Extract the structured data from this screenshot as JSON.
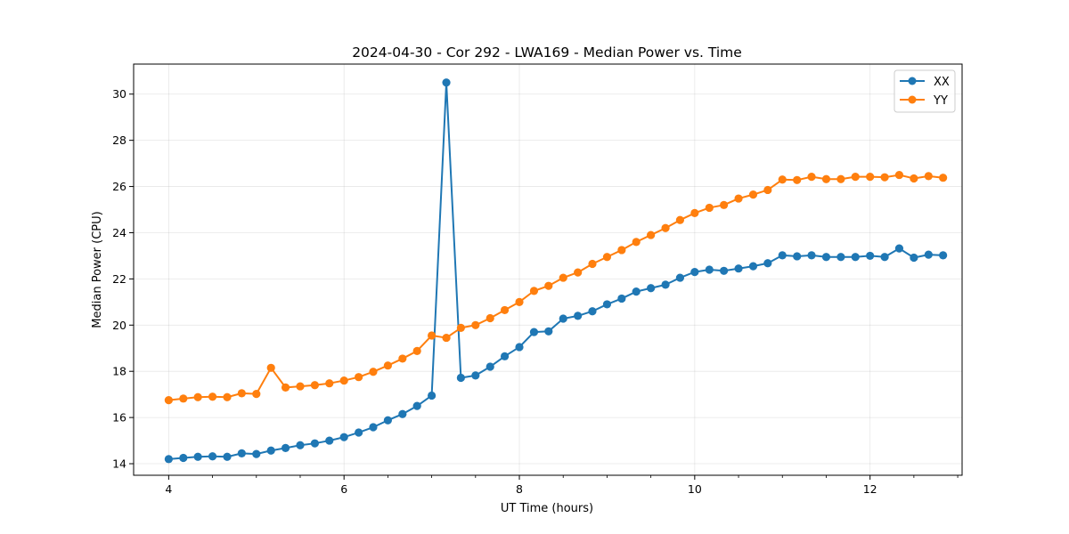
{
  "chart_data": {
    "type": "line",
    "title": "2024-04-30 - Cor 292 - LWA169 - Median Power vs. Time",
    "xlabel": "UT Time (hours)",
    "ylabel": "Median Power (CPU)",
    "xlim": [
      3.6,
      13.05
    ],
    "ylim": [
      13.5,
      31.3
    ],
    "xticks": [
      4,
      6,
      8,
      10,
      12
    ],
    "yticks": [
      14,
      16,
      18,
      20,
      22,
      24,
      26,
      28,
      30
    ],
    "x_minor_step": 0.5,
    "grid": true,
    "legend_position": "top-right",
    "x": [
      4.0,
      4.167,
      4.333,
      4.5,
      4.667,
      4.833,
      5.0,
      5.167,
      5.333,
      5.5,
      5.667,
      5.833,
      6.0,
      6.167,
      6.333,
      6.5,
      6.667,
      6.833,
      7.0,
      7.167,
      7.333,
      7.5,
      7.667,
      7.833,
      8.0,
      8.167,
      8.333,
      8.5,
      8.667,
      8.833,
      9.0,
      9.167,
      9.333,
      9.5,
      9.667,
      9.833,
      10.0,
      10.167,
      10.333,
      10.5,
      10.667,
      10.833,
      11.0,
      11.167,
      11.333,
      11.5,
      11.667,
      11.833,
      12.0,
      12.167,
      12.333,
      12.5,
      12.667,
      12.833
    ],
    "series": [
      {
        "name": "XX",
        "color": "#1f77b4",
        "values": [
          14.2,
          14.25,
          14.3,
          14.32,
          14.3,
          14.45,
          14.42,
          14.57,
          14.68,
          14.8,
          14.88,
          15.0,
          15.15,
          15.35,
          15.58,
          15.88,
          16.15,
          16.5,
          16.95,
          30.5,
          17.72,
          17.82,
          18.2,
          18.65,
          19.05,
          19.7,
          19.73,
          20.28,
          20.4,
          20.6,
          20.9,
          21.15,
          21.45,
          21.6,
          21.75,
          22.05,
          22.3,
          22.4,
          22.35,
          22.45,
          22.55,
          22.68,
          23.02,
          22.98,
          23.02,
          22.95,
          22.95,
          22.95,
          23.0,
          22.95,
          23.32,
          22.92,
          23.05,
          23.02
        ]
      },
      {
        "name": "YY",
        "color": "#ff7f0e",
        "values": [
          16.75,
          16.82,
          16.88,
          16.9,
          16.88,
          17.05,
          17.02,
          18.15,
          17.3,
          17.35,
          17.4,
          17.48,
          17.6,
          17.75,
          17.98,
          18.25,
          18.55,
          18.88,
          19.55,
          19.45,
          19.88,
          20.0,
          20.3,
          20.65,
          21.0,
          21.48,
          21.7,
          22.05,
          22.28,
          22.65,
          22.95,
          23.25,
          23.6,
          23.9,
          24.2,
          24.55,
          24.85,
          25.08,
          25.2,
          25.48,
          25.65,
          25.85,
          26.3,
          26.28,
          26.42,
          26.32,
          26.32,
          26.42,
          26.42,
          26.4,
          26.5,
          26.35,
          26.45,
          26.38
        ]
      }
    ]
  }
}
